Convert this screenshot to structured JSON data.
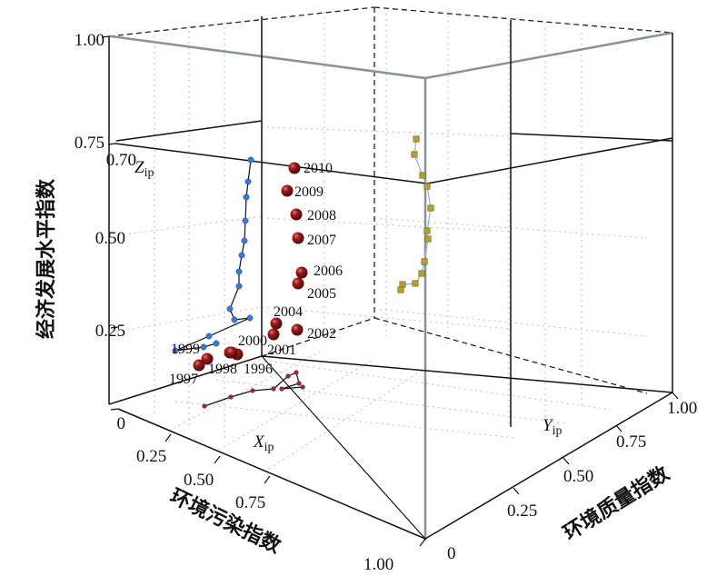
{
  "chart_data": {
    "type": "scatter",
    "projection": "3d",
    "x_axis": {
      "label": "环境污染指数",
      "symbol": "X",
      "symbol_sub": "ip",
      "ticks": [
        "0.25",
        "0.50",
        "0.75",
        "1.00"
      ]
    },
    "y_axis": {
      "label": "环境质量指数",
      "symbol": "Y",
      "symbol_sub": "ip",
      "ticks": [
        "0",
        "0.25",
        "0.50",
        "0.75",
        "1.00"
      ]
    },
    "z_axis": {
      "label": "经济发展水平指数",
      "symbol": "Z",
      "symbol_sub": "ip",
      "ticks": [
        "0",
        "0.25",
        "0.50",
        "0.70",
        "0.75",
        "1.00"
      ]
    },
    "points": [
      {
        "year": "1996",
        "label": "1996"
      },
      {
        "year": "1997",
        "label": "1997"
      },
      {
        "year": "1998",
        "label": "1998"
      },
      {
        "year": "1999",
        "label": "1999"
      },
      {
        "year": "2000",
        "label": "2000"
      },
      {
        "year": "2001",
        "label": "2001"
      },
      {
        "year": "2002",
        "label": "2002"
      },
      {
        "year": "2004",
        "label": "2004"
      },
      {
        "year": "2005",
        "label": "2005"
      },
      {
        "year": "2006",
        "label": "2006"
      },
      {
        "year": "2007",
        "label": "2007"
      },
      {
        "year": "2008",
        "label": "2008"
      },
      {
        "year": "2009",
        "label": "2009"
      },
      {
        "year": "2010",
        "label": "2010"
      }
    ],
    "projections": [
      {
        "plane": "x-z",
        "color": "#3a78e0"
      },
      {
        "plane": "y-z",
        "color": "#b5a128"
      },
      {
        "plane": "x-y",
        "color": "#b02323"
      }
    ],
    "marker_color": "#8b1414",
    "grid": true
  }
}
